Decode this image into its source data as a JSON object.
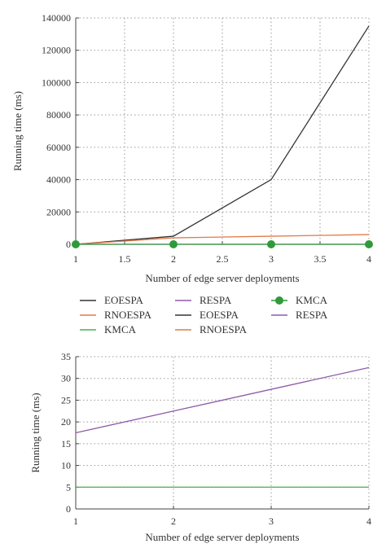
{
  "chart_data": [
    {
      "type": "line",
      "xlabel": "Number of edge server deployments",
      "ylabel": "Running time (ms)",
      "xlim": [
        1,
        4
      ],
      "ylim": [
        0,
        140000
      ],
      "xticks": [
        "1",
        "1.5",
        "2",
        "2.5",
        "3",
        "3.5",
        "4"
      ],
      "yticks": [
        "0",
        "20000",
        "40000",
        "60000",
        "80000",
        "100000",
        "120000",
        "140000"
      ],
      "grid": true,
      "x": [
        1,
        2,
        3,
        4
      ],
      "series": [
        {
          "name": "EOESPA",
          "color": "#333333",
          "marker": "none",
          "values": [
            0,
            5000,
            40000,
            135000
          ]
        },
        {
          "name": "RNOESPA",
          "color": "#e07b4a",
          "marker": "none",
          "values": [
            0,
            4000,
            5000,
            6000
          ]
        },
        {
          "name": "RESPA",
          "color": "#8e5ba8",
          "marker": "none",
          "values": [
            0,
            0,
            0,
            0
          ]
        },
        {
          "name": "KMCA",
          "color": "#2f9a3a",
          "marker": "circle",
          "values": [
            0,
            0,
            0,
            0
          ]
        }
      ]
    },
    {
      "type": "line",
      "xlabel": "Number of edge server deployments",
      "ylabel": "Running time (ms)",
      "xlim": [
        1,
        4
      ],
      "ylim": [
        0,
        35
      ],
      "xticks": [
        "1",
        "2",
        "3",
        "4"
      ],
      "yticks": [
        "0",
        "5",
        "10",
        "15",
        "20",
        "25",
        "30",
        "35"
      ],
      "grid": true,
      "x": [
        1,
        2,
        3,
        4
      ],
      "series": [
        {
          "name": "RESPA",
          "color": "#8e5ba8",
          "marker": "none",
          "values": [
            17.5,
            22.5,
            27.5,
            32.5
          ]
        },
        {
          "name": "KMCA",
          "color": "#4caf50",
          "marker": "none",
          "values": [
            5,
            5,
            5,
            5
          ]
        }
      ]
    }
  ],
  "legend": {
    "placement": "between-panels",
    "entries": [
      {
        "name": "EOESPA",
        "color": "#333333",
        "marker": "none"
      },
      {
        "name": "RESPA",
        "color": "#8e5ba8",
        "marker": "none"
      },
      {
        "name": "KMCA",
        "color": "#2f9a3a",
        "marker": "circle"
      },
      {
        "name": "RNOESPA",
        "color": "#e07b4a",
        "marker": "none"
      },
      {
        "name": "EOESPA",
        "color": "#333333",
        "marker": "none"
      },
      {
        "name": "RESPA",
        "color": "#8e5ba8",
        "marker": "none"
      },
      {
        "name": "KMCA",
        "color": "#4caf50",
        "marker": "none"
      },
      {
        "name": "RNOESPA",
        "color": "#e07b4a",
        "marker": "none"
      }
    ]
  }
}
